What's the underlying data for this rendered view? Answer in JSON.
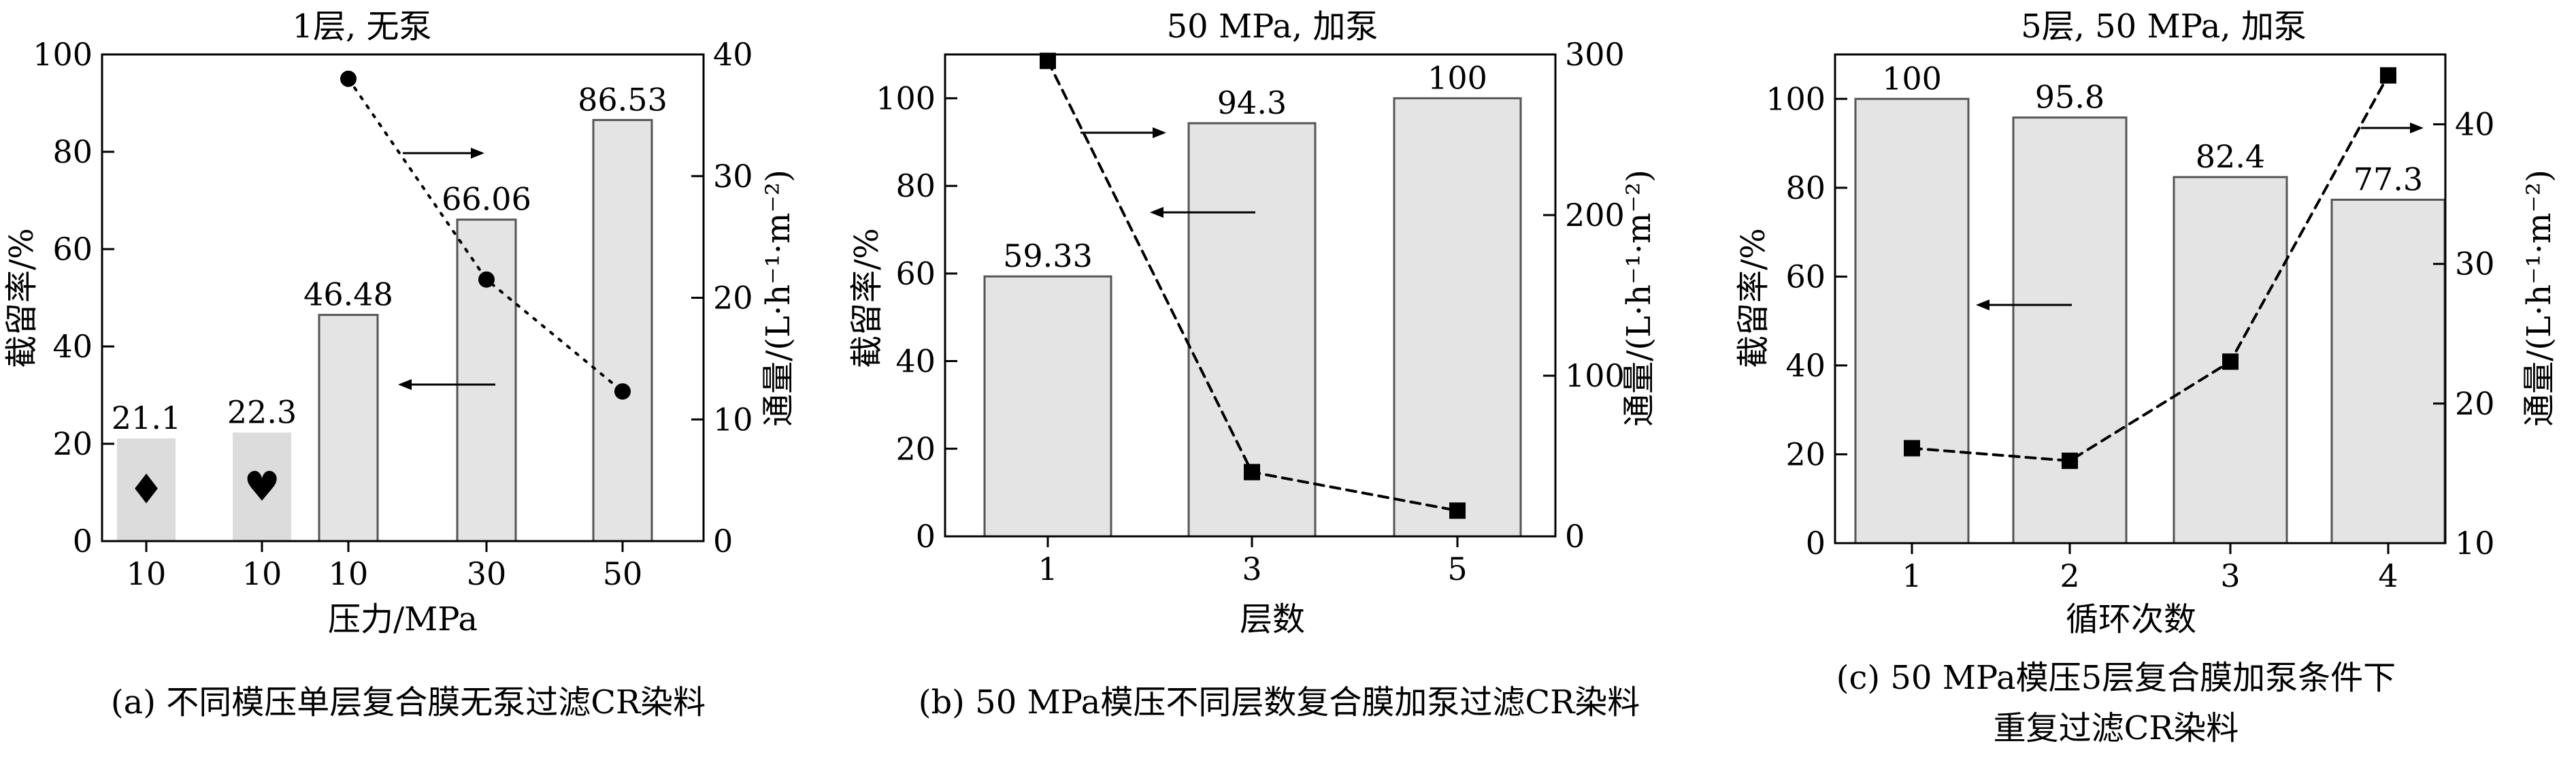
{
  "chart_data": [
    {
      "type": "bar+line",
      "title": "1层, 无泵",
      "xlabel": "压力/MPa",
      "ylabel_left": "截留率/%",
      "ylabel_right": "通量/(L·h⁻¹·m⁻²)",
      "categories": [
        "10",
        "10",
        "10",
        "30",
        "50"
      ],
      "bar_values": [
        21.1,
        22.3,
        46.48,
        66.06,
        86.53
      ],
      "bar_labels": [
        "21.1",
        "22.3",
        "46.48",
        "66.06",
        "86.53"
      ],
      "bar_symbols": [
        "♦",
        "♥",
        "",
        "",
        ""
      ],
      "line_values": [
        null,
        null,
        38,
        21.5,
        12.3
      ],
      "line_marker": "circle",
      "ylim_left": [
        0,
        100
      ],
      "yticks_left": [
        "0",
        "20",
        "40",
        "60",
        "80",
        "100"
      ],
      "ylim_right": [
        0,
        40
      ],
      "yticks_right": [
        "0",
        "10",
        "20",
        "30",
        "40"
      ],
      "caption": "(a) 不同模压单层复合膜无泵过滤CR染料"
    },
    {
      "type": "bar+line",
      "title": "50 MPa, 加泵",
      "xlabel": "层数",
      "ylabel_left": "截留率/%",
      "ylabel_right": "通量/(L·h⁻¹·m⁻²)",
      "categories": [
        "1",
        "3",
        "5"
      ],
      "bar_values": [
        59.33,
        94.3,
        100
      ],
      "bar_labels": [
        "59.33",
        "94.3",
        "100"
      ],
      "line_values": [
        296,
        40,
        16
      ],
      "line_marker": "square",
      "ylim_left": [
        0,
        110
      ],
      "yticks_left": [
        "0",
        "20",
        "40",
        "60",
        "80",
        "100"
      ],
      "ylim_right": [
        0,
        300
      ],
      "yticks_right": [
        "0",
        "100",
        "200",
        "300"
      ],
      "caption": "(b) 50 MPa模压不同层数复合膜加泵过滤CR染料"
    },
    {
      "type": "bar+line",
      "title": "5层, 50 MPa, 加泵",
      "xlabel": "循环次数",
      "ylabel_left": "截留率/%",
      "ylabel_right": "通量/(L·h⁻¹·m⁻²)",
      "categories": [
        "1",
        "2",
        "3",
        "4"
      ],
      "bar_values": [
        100,
        95.8,
        82.4,
        77.3
      ],
      "bar_labels": [
        "100",
        "95.8",
        "82.4",
        "77.3"
      ],
      "line_values": [
        16.8,
        15.9,
        23,
        43.5
      ],
      "line_marker": "square",
      "ylim_left": [
        0,
        110
      ],
      "yticks_left": [
        "0",
        "20",
        "40",
        "60",
        "80",
        "100"
      ],
      "ylim_right": [
        10,
        45
      ],
      "yticks_right": [
        "10",
        "20",
        "30",
        "40"
      ],
      "caption_lines": [
        "(c) 50 MPa模压5层复合膜加泵条件下",
        "重复过滤CR染料"
      ]
    }
  ]
}
